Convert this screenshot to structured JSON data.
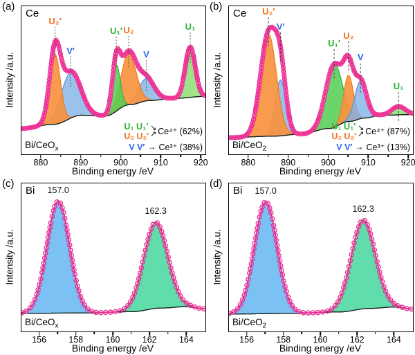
{
  "icons": {
    "merge_down": "↘",
    "merge_up": "↗",
    "arrow_right": "→"
  },
  "colors": {
    "pink": "#EB2D92",
    "pink_band": "#F566AF",
    "noise": "#9C9C9C",
    "baseline": "#1B1B1B",
    "orange": {
      "fill": "#F8923F",
      "stroke": "#EF7A22",
      "label": "#F2721B",
      "op": 0.92
    },
    "blue": {
      "fill": "#82B1E8",
      "stroke": "#5590D8",
      "label": "#2B6BE4",
      "op": 0.8
    },
    "green": {
      "fill": "#57CE57",
      "stroke": "#2EB13C",
      "label": "#2CB335",
      "op": 0.88
    },
    "green_light": {
      "fill": "#8FE07A",
      "stroke": "#53C253",
      "label": "#2CB335",
      "op": 0.88
    },
    "blue_bi": {
      "fill": "#74BEF3",
      "stroke": "#2F8FD9",
      "label": "#111111",
      "op": 0.95
    },
    "green_bi": {
      "fill": "#59DBA6",
      "stroke": "#21B183",
      "label": "#111111",
      "op": 0.95
    }
  },
  "panels": {
    "a": {
      "tag": "(a)",
      "element": "Ce",
      "sample_base": "Bi/CeO",
      "sample_sub": "x",
      "xlabel": "Binding energy /eV",
      "ylabel": "Intensity /a.u.",
      "chart": 0
    },
    "b": {
      "tag": "(b)",
      "element": "Ce",
      "sample_base": "Bi/CeO",
      "sample_sub": "2",
      "xlabel": "Binding energy /eV",
      "ylabel": "Intensity /a.u.",
      "chart": 1
    },
    "c": {
      "tag": "(c)",
      "element": "Bi",
      "sample_base": "Bi/CeO",
      "sample_sub": "x",
      "xlabel": "Binding energy /eV",
      "ylabel": "Intensity /a.u.",
      "chart": 2
    },
    "d": {
      "tag": "(d)",
      "element": "Bi",
      "sample_base": "Bi/CeO",
      "sample_sub": "2",
      "xlabel": "Binding energy /eV",
      "ylabel": "Intensity /a.u.",
      "chart": 3
    }
  },
  "chart_data": [
    {
      "type": "area",
      "panel": "a",
      "sample": "Bi/CeOx",
      "element": "Ce",
      "xlabel": "Binding energy /eV",
      "ylabel": "Intensity /a.u.",
      "x_range": [
        875,
        921
      ],
      "xticks": [
        880,
        890,
        900,
        910,
        920
      ],
      "envelope_style": "band",
      "noise": 0.016,
      "seed": 11,
      "guide_dash": "1.8,2.4",
      "baseline": [
        [
          875,
          0.155
        ],
        [
          883,
          0.185
        ],
        [
          890,
          0.25
        ],
        [
          896,
          0.245
        ],
        [
          902,
          0.325
        ],
        [
          907,
          0.355
        ],
        [
          913,
          0.37
        ],
        [
          921,
          0.385
        ]
      ],
      "peaks": [
        {
          "name": "V′",
          "center": 887.3,
          "sigma": 2.45,
          "amp": 0.33,
          "color": "blue",
          "guide": true
        },
        {
          "name": "U₂′",
          "center": 883.4,
          "sigma": 1.35,
          "amp": 0.5,
          "color": "orange",
          "guide": true
        },
        {
          "name": "V",
          "center": 906.2,
          "sigma": 2.0,
          "amp": 0.16,
          "color": "blue",
          "guide": true
        },
        {
          "name": "U₂",
          "center": 901.8,
          "sigma": 1.9,
          "amp": 0.37,
          "color": "orange",
          "guide": true
        },
        {
          "name": "U₁′",
          "center": 898.7,
          "sigma": 1.0,
          "amp": 0.33,
          "color": "green",
          "guide": true
        },
        {
          "name": "U₁",
          "center": 917.2,
          "sigma": 1.25,
          "amp": 0.36,
          "color": "green_light",
          "guide": true
        }
      ],
      "legend": {
        "pair1": "U₁ U₁′",
        "pair2": "U₂ U₂′",
        "pair3": "V V′",
        "result1": "Ce⁴⁺ (62%)",
        "result2": "Ce³⁺ (38%)"
      }
    },
    {
      "type": "area",
      "panel": "b",
      "sample": "Bi/CeO2",
      "element": "Ce",
      "xlabel": "Binding energy /eV",
      "ylabel": "Intensity /a.u.",
      "x_range": [
        875,
        921
      ],
      "xticks": [
        880,
        890,
        900,
        910,
        920
      ],
      "envelope_style": "band",
      "noise": 0.016,
      "seed": 22,
      "guide_dash": "3,2.6",
      "baseline": [
        [
          875,
          0.09
        ],
        [
          886,
          0.1
        ],
        [
          893,
          0.115
        ],
        [
          900,
          0.155
        ],
        [
          905,
          0.205
        ],
        [
          909,
          0.23
        ],
        [
          913,
          0.25
        ],
        [
          921,
          0.255
        ]
      ],
      "peaks": [
        {
          "name": "U₁′",
          "center": 901.3,
          "sigma": 2.1,
          "amp": 0.45,
          "color": "green",
          "guide": true
        },
        {
          "name": "V′",
          "center": 887.9,
          "sigma": 1.35,
          "amp": 0.4,
          "color": "blue",
          "guide": true
        },
        {
          "name": "U₂′",
          "center": 884.9,
          "sigma": 2.0,
          "amp": 0.73,
          "color": "orange",
          "guide": true
        },
        {
          "name": "U₂",
          "center": 904.9,
          "sigma": 1.25,
          "amp": 0.33,
          "color": "orange",
          "guide": true
        },
        {
          "name": "V",
          "center": 907.9,
          "sigma": 1.5,
          "amp": 0.27,
          "color": "blue",
          "guide": true
        },
        {
          "name": "U₁",
          "center": 917.4,
          "sigma": 1.7,
          "amp": 0.06,
          "color": "green_light",
          "guide": true
        }
      ],
      "legend": {
        "pair1": "U₁ U₁′",
        "pair2": "U₂ U₂′",
        "pair3": "V V′",
        "result1": "Ce⁴⁺ (87%)",
        "result2": "Ce³⁺ (13%)"
      }
    },
    {
      "type": "area",
      "panel": "c",
      "sample": "Bi/CeOx",
      "element": "Bi",
      "xlabel": "Binding energy /eV",
      "ylabel": "Intensity /a.u.",
      "x_range": [
        155,
        165
      ],
      "xticks": [
        156,
        158,
        160,
        162,
        164
      ],
      "envelope_style": "circles",
      "noise": 0.006,
      "seed": 33,
      "baseline": [
        [
          155,
          0.1
        ],
        [
          158.6,
          0.103
        ],
        [
          161,
          0.112
        ],
        [
          162.6,
          0.138
        ],
        [
          164,
          0.148
        ],
        [
          165,
          0.132
        ]
      ],
      "peaks": [
        {
          "name": "157.0",
          "center": 157.0,
          "sigma": 0.62,
          "amp": 0.8,
          "color": "blue_bi",
          "label_color": "#111111"
        },
        {
          "name": "162.3",
          "center": 162.3,
          "sigma": 0.66,
          "amp": 0.615,
          "color": "green_bi",
          "label_color": "#111111"
        }
      ]
    },
    {
      "type": "area",
      "panel": "d",
      "sample": "Bi/CeO2",
      "element": "Bi",
      "xlabel": "Binding energy /eV",
      "ylabel": "Intensity /a.u.",
      "x_range": [
        155,
        165
      ],
      "xticks": [
        156,
        158,
        160,
        162,
        164
      ],
      "envelope_style": "circles",
      "noise": 0.006,
      "seed": 44,
      "baseline": [
        [
          155,
          0.095
        ],
        [
          158.6,
          0.1
        ],
        [
          161,
          0.11
        ],
        [
          162.6,
          0.135
        ],
        [
          164,
          0.145
        ],
        [
          165,
          0.13
        ]
      ],
      "peaks": [
        {
          "name": "157.0",
          "center": 157.0,
          "sigma": 0.62,
          "amp": 0.8,
          "color": "blue_bi",
          "label_color": "#111111"
        },
        {
          "name": "162.3",
          "center": 162.3,
          "sigma": 0.66,
          "amp": 0.635,
          "color": "green_bi",
          "label_color": "#111111"
        }
      ]
    }
  ]
}
